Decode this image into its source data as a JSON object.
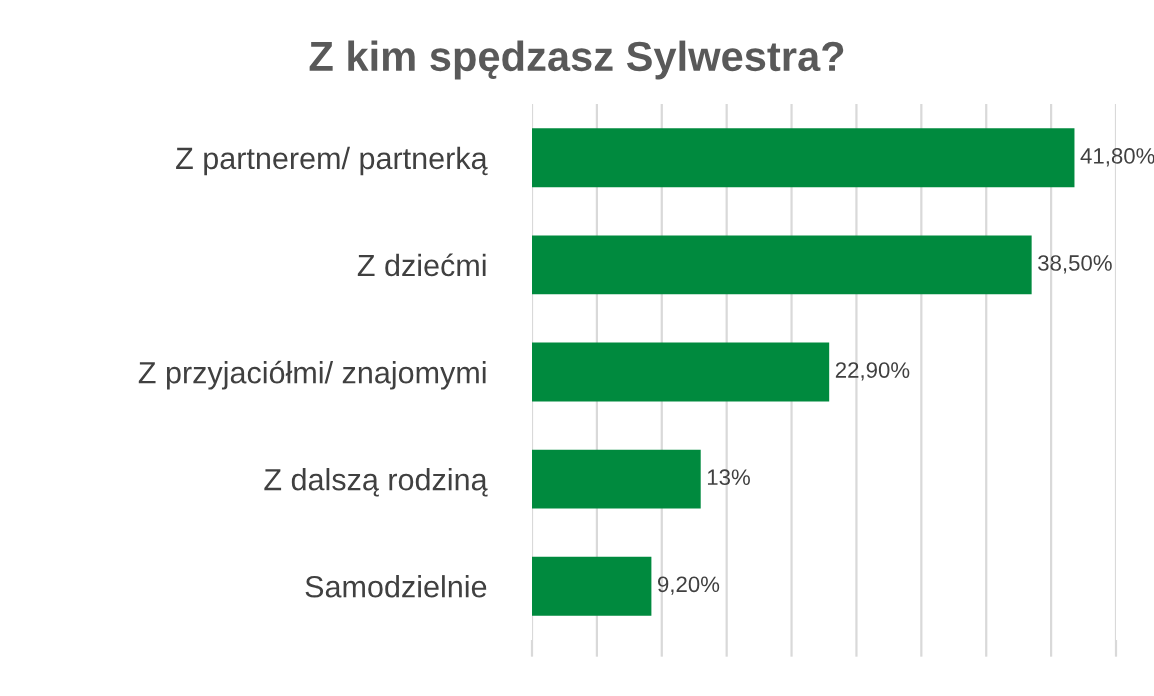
{
  "chart_data": {
    "type": "bar",
    "orientation": "horizontal",
    "title": "Z kim spędzasz Sylwestra?",
    "categories": [
      "Z partnerem/ partnerką",
      "Z dziećmi",
      "Z przyjaciółmi/ znajomymi",
      "Z dalszą rodziną",
      "Samodzielnie"
    ],
    "values": [
      41.8,
      38.5,
      22.9,
      13,
      9.2
    ],
    "value_labels": [
      "41,80%",
      "38,50%",
      "22,90%",
      "13%",
      "9,20%"
    ],
    "color": "#008a3e",
    "xticks": [
      {
        "value": 0,
        "label": null
      },
      {
        "value": 5,
        "label": null
      },
      {
        "value": 10,
        "label": null
      },
      {
        "value": 15,
        "label": null
      },
      {
        "value": 20,
        "label": null
      },
      {
        "value": 25,
        "label": null
      },
      {
        "value": 30,
        "label": null
      },
      {
        "value": 35,
        "label": null
      },
      {
        "value": 40,
        "label": null
      },
      {
        "value": 45,
        "label": null
      }
    ],
    "grid": "x",
    "tick_labels": "y",
    "legend": false
  }
}
